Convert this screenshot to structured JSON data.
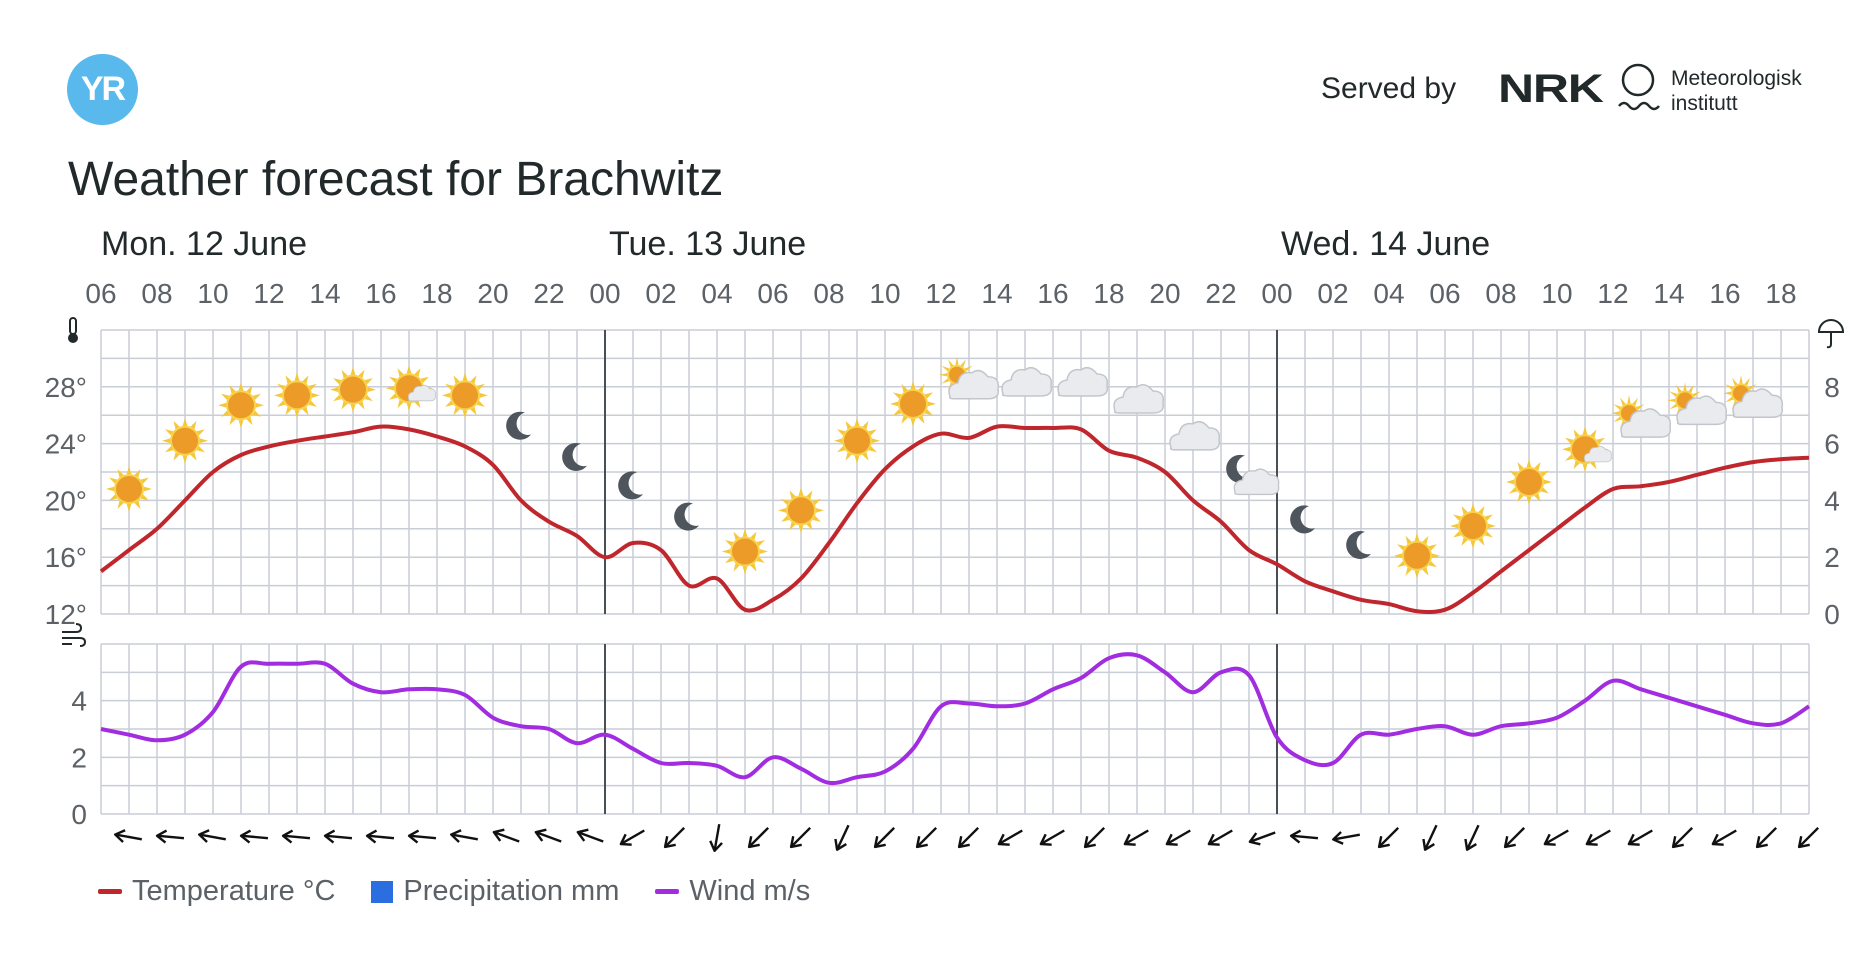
{
  "header": {
    "logo_text": "YR",
    "served_by": "Served by",
    "nrk_logo": "NRK",
    "met_logo_lines": [
      "Meteorologisk",
      "institutt"
    ],
    "title": "Weather forecast for Brachwitz"
  },
  "days": [
    "Mon. 12 June",
    "Tue. 13 June",
    "Wed. 14 June"
  ],
  "hours": [
    "06",
    "08",
    "10",
    "12",
    "14",
    "16",
    "18",
    "20",
    "22",
    "00",
    "02",
    "04",
    "06",
    "08",
    "10",
    "12",
    "14",
    "16",
    "18",
    "20",
    "22",
    "00",
    "02",
    "04",
    "06",
    "08",
    "10",
    "12",
    "14",
    "16",
    "18"
  ],
  "legend": {
    "temperature": "Temperature °C",
    "precipitation": "Precipitation mm",
    "wind": "Wind m/s"
  },
  "colors": {
    "temperature": "#c0272d",
    "precipitation": "#2a6ee0",
    "wind": "#a12ce0",
    "grid": "#c9ced6",
    "day_divider": "#4a4f55"
  },
  "icons": {
    "thermometer": "thermometer-icon",
    "umbrella": "umbrella-icon",
    "wind": "wind-icon"
  },
  "chart_data": [
    {
      "type": "line",
      "title": "",
      "x": [
        "06",
        "07",
        "08",
        "09",
        "10",
        "11",
        "12",
        "13",
        "14",
        "15",
        "16",
        "17",
        "18",
        "19",
        "20",
        "21",
        "22",
        "23",
        "00",
        "01",
        "02",
        "03",
        "04",
        "05",
        "06",
        "07",
        "08",
        "09",
        "10",
        "11",
        "12",
        "13",
        "14",
        "15",
        "16",
        "17",
        "18",
        "19",
        "20",
        "21",
        "22",
        "23",
        "00",
        "01",
        "02",
        "03",
        "04",
        "05",
        "06",
        "07",
        "08",
        "09",
        "10",
        "11",
        "12",
        "13",
        "14",
        "15",
        "16",
        "17",
        "18",
        "19"
      ],
      "series": [
        {
          "name": "Temperature °C",
          "axis": "left",
          "values": [
            15,
            16.5,
            18,
            20,
            22,
            23.2,
            23.8,
            24.2,
            24.5,
            24.8,
            25.2,
            25,
            24.5,
            23.8,
            22.5,
            20,
            18.5,
            17.5,
            16,
            17,
            16.5,
            14,
            14.5,
            12.3,
            13,
            14.5,
            17,
            19.8,
            22.2,
            23.8,
            24.7,
            24.4,
            25.2,
            25.1,
            25.1,
            25,
            23.5,
            23,
            22,
            20,
            18.5,
            16.5,
            15.5,
            14.3,
            13.6,
            13,
            12.7,
            12.2,
            12.3,
            13.5,
            15,
            16.5,
            18,
            19.5,
            20.8,
            21,
            21.3,
            21.8,
            22.3,
            22.7,
            22.9,
            23
          ]
        },
        {
          "name": "Precipitation mm",
          "axis": "right",
          "values": [
            0,
            0,
            0,
            0,
            0,
            0,
            0,
            0,
            0,
            0,
            0,
            0,
            0,
            0,
            0,
            0,
            0,
            0,
            0,
            0,
            0,
            0,
            0,
            0,
            0,
            0,
            0,
            0,
            0,
            0,
            0,
            0,
            0,
            0,
            0,
            0,
            0,
            0,
            0,
            0,
            0,
            0,
            0,
            0,
            0,
            0,
            0,
            0,
            0,
            0,
            0,
            0,
            0,
            0,
            0,
            0,
            0,
            0,
            0,
            0,
            0,
            0
          ]
        }
      ],
      "ylim_left": [
        12,
        32
      ],
      "yticks_left": [
        "12°",
        "16°",
        "20°",
        "24°",
        "28°"
      ],
      "ylim_right": [
        0,
        10
      ],
      "yticks_right": [
        "0",
        "2",
        "4",
        "6",
        "8"
      ],
      "grid": true,
      "symbols": [
        {
          "x": 1,
          "y": 20.8,
          "icon": "sun-icon"
        },
        {
          "x": 3,
          "y": 24.2,
          "icon": "sun-icon"
        },
        {
          "x": 5,
          "y": 26.7,
          "icon": "sun-icon"
        },
        {
          "x": 7,
          "y": 27.4,
          "icon": "sun-icon"
        },
        {
          "x": 9,
          "y": 27.8,
          "icon": "sun-icon"
        },
        {
          "x": 11,
          "y": 27.9,
          "icon": "sun-cloud-icon"
        },
        {
          "x": 13,
          "y": 27.4,
          "icon": "sun-icon"
        },
        {
          "x": 15,
          "y": 25.2,
          "icon": "moon-icon"
        },
        {
          "x": 17,
          "y": 23.0,
          "icon": "moon-icon"
        },
        {
          "x": 19,
          "y": 21.0,
          "icon": "moon-icon"
        },
        {
          "x": 21,
          "y": 18.8,
          "icon": "moon-icon"
        },
        {
          "x": 23,
          "y": 16.4,
          "icon": "sun-icon"
        },
        {
          "x": 25,
          "y": 19.3,
          "icon": "sun-icon"
        },
        {
          "x": 27,
          "y": 24.2,
          "icon": "sun-icon"
        },
        {
          "x": 29,
          "y": 26.8,
          "icon": "sun-icon"
        },
        {
          "x": 31,
          "y": 28.0,
          "icon": "cloud-sun-icon"
        },
        {
          "x": 33,
          "y": 28.2,
          "icon": "cloud-icon"
        },
        {
          "x": 35,
          "y": 28.2,
          "icon": "cloud-icon"
        },
        {
          "x": 37,
          "y": 27.0,
          "icon": "cloud-icon"
        },
        {
          "x": 39,
          "y": 24.4,
          "icon": "cloud-icon"
        },
        {
          "x": 41,
          "y": 21.6,
          "icon": "moon-cloud-icon"
        },
        {
          "x": 43,
          "y": 18.6,
          "icon": "moon-icon"
        },
        {
          "x": 45,
          "y": 16.8,
          "icon": "moon-icon"
        },
        {
          "x": 47,
          "y": 16.1,
          "icon": "sun-icon"
        },
        {
          "x": 49,
          "y": 18.2,
          "icon": "sun-icon"
        },
        {
          "x": 51,
          "y": 21.3,
          "icon": "sun-icon"
        },
        {
          "x": 53,
          "y": 23.6,
          "icon": "sun-cloud-icon"
        },
        {
          "x": 55,
          "y": 25.3,
          "icon": "cloud-sun-icon"
        },
        {
          "x": 57,
          "y": 26.2,
          "icon": "cloud-sun-icon"
        },
        {
          "x": 59,
          "y": 26.7,
          "icon": "cloud-sun-icon"
        }
      ]
    },
    {
      "type": "line",
      "title": "",
      "x": [
        "06",
        "07",
        "08",
        "09",
        "10",
        "11",
        "12",
        "13",
        "14",
        "15",
        "16",
        "17",
        "18",
        "19",
        "20",
        "21",
        "22",
        "23",
        "00",
        "01",
        "02",
        "03",
        "04",
        "05",
        "06",
        "07",
        "08",
        "09",
        "10",
        "11",
        "12",
        "13",
        "14",
        "15",
        "16",
        "17",
        "18",
        "19",
        "20",
        "21",
        "22",
        "23",
        "00",
        "01",
        "02",
        "03",
        "04",
        "05",
        "06",
        "07",
        "08",
        "09",
        "10",
        "11",
        "12",
        "13",
        "14",
        "15",
        "16",
        "17",
        "18",
        "19"
      ],
      "series": [
        {
          "name": "Wind m/s",
          "values": [
            3,
            2.8,
            2.6,
            2.8,
            3.6,
            5.2,
            5.3,
            5.3,
            5.3,
            4.6,
            4.3,
            4.4,
            4.4,
            4.2,
            3.4,
            3.1,
            3,
            2.5,
            2.8,
            2.3,
            1.8,
            1.8,
            1.7,
            1.3,
            2,
            1.6,
            1.1,
            1.3,
            1.5,
            2.3,
            3.8,
            3.9,
            3.8,
            3.9,
            4.4,
            4.8,
            5.5,
            5.6,
            5,
            4.3,
            5,
            4.9,
            2.7,
            1.9,
            1.8,
            2.8,
            2.8,
            3,
            3.1,
            2.8,
            3.1,
            3.2,
            3.4,
            4,
            4.7,
            4.4,
            4.1,
            3.8,
            3.5,
            3.2,
            3.2,
            3.8
          ]
        }
      ],
      "ylim": [
        0,
        6
      ],
      "yticks": [
        "0",
        "2",
        "4"
      ],
      "grid": true,
      "wind_directions_deg": [
        100,
        95,
        100,
        95,
        95,
        95,
        95,
        95,
        100,
        110,
        110,
        110,
        60,
        45,
        10,
        45,
        45,
        25,
        45,
        45,
        45,
        60,
        60,
        45,
        60,
        60,
        60,
        70,
        95,
        80,
        45,
        25,
        25,
        45,
        60,
        60,
        60,
        45,
        60,
        45,
        45
      ]
    }
  ]
}
